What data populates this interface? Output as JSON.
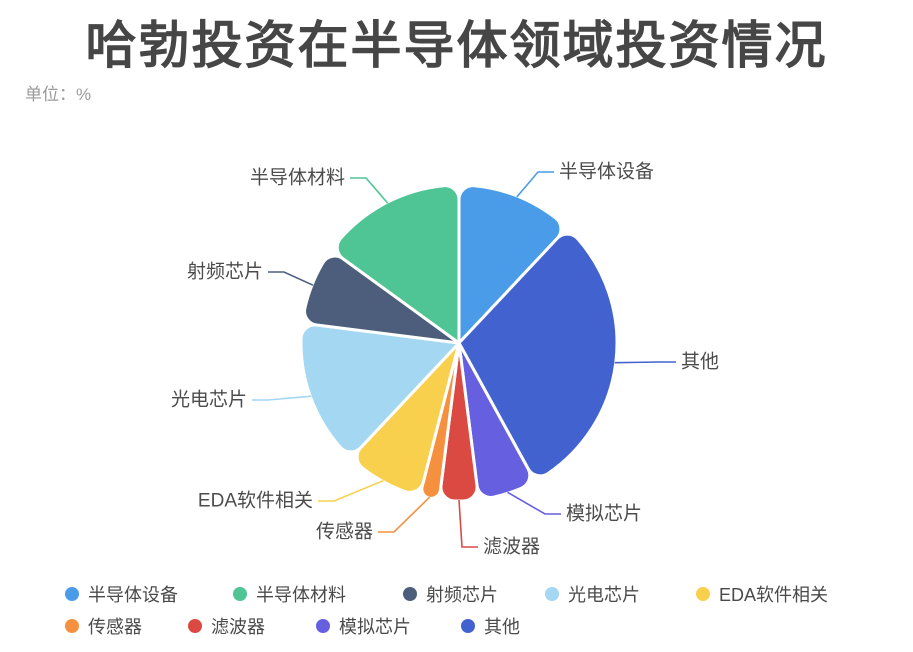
{
  "header": {
    "title": "哈勃投资在半导体领域投资情况",
    "unit_label": "单位：%"
  },
  "chart_data": {
    "type": "pie",
    "title": "哈勃投资在半导体领域投资情况",
    "unit": "%",
    "legend_position": "bottom",
    "label_text_color": "#4c4c4c",
    "series": [
      {
        "name": "半导体设备",
        "value": 12,
        "color": "#4A9CE8"
      },
      {
        "name": "其他",
        "value": 30,
        "color": "#4263CF"
      },
      {
        "name": "模拟芯片",
        "value": 6,
        "color": "#665FE0"
      },
      {
        "name": "滤波器",
        "value": 4,
        "color": "#DB4A42"
      },
      {
        "name": "传感器",
        "value": 2,
        "color": "#F5913E"
      },
      {
        "name": "EDA软件相关",
        "value": 8,
        "color": "#F9D04D"
      },
      {
        "name": "光电芯片",
        "value": 15,
        "color": "#A3D7F2"
      },
      {
        "name": "射频芯片",
        "value": 8,
        "color": "#4D5E7D"
      },
      {
        "name": "半导体材料",
        "value": 15,
        "color": "#4FC596"
      }
    ],
    "legend_order": [
      "半导体设备",
      "半导体材料",
      "射频芯片",
      "光电芯片",
      "EDA软件相关",
      "传感器",
      "滤波器",
      "模拟芯片",
      "其他"
    ]
  }
}
